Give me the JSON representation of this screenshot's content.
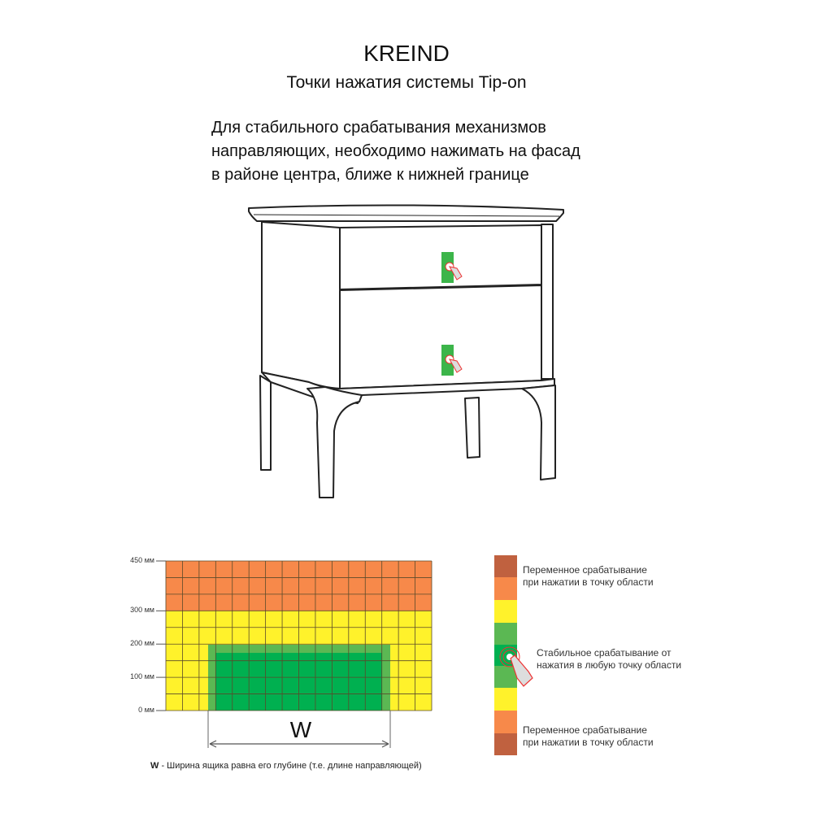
{
  "header": {
    "brand": "KREIND",
    "subtitle": "Точки нажатия системы Tip-on"
  },
  "instruction": {
    "lines": [
      "Для стабильного срабатывания механизмов",
      "направляющих, необходимо нажимать на фасад",
      "в районе центра, ближе к нижней границе"
    ]
  },
  "illustration": {
    "object": "nightstand with two drawers",
    "press_zone_color": "#3cb54a",
    "icon": "hand-press-icon"
  },
  "zone_diagram": {
    "y_ticks": [
      "450 мм",
      "300 мм",
      "200 мм",
      "100 мм",
      "0 мм"
    ],
    "width_label": "W",
    "caption_key": "W",
    "caption_text": " - Ширина ящика равна его глубине (т.е. длине направляющей)",
    "colors": {
      "variable": "#f7894a",
      "transition": "#fff22b",
      "stable_outer": "#5bb853",
      "stable_inner": "#00b050",
      "dark_variable": "#c0613f"
    }
  },
  "legend": {
    "items": [
      {
        "text1": "Переменное срабатывание",
        "text2": "при нажатии в точку области"
      },
      {
        "text1": "Стабильное срабатывание от",
        "text2": "нажатия в любую точку области"
      },
      {
        "text1": "Переменное срабатывание",
        "text2": "при нажатии в точку области"
      }
    ]
  }
}
